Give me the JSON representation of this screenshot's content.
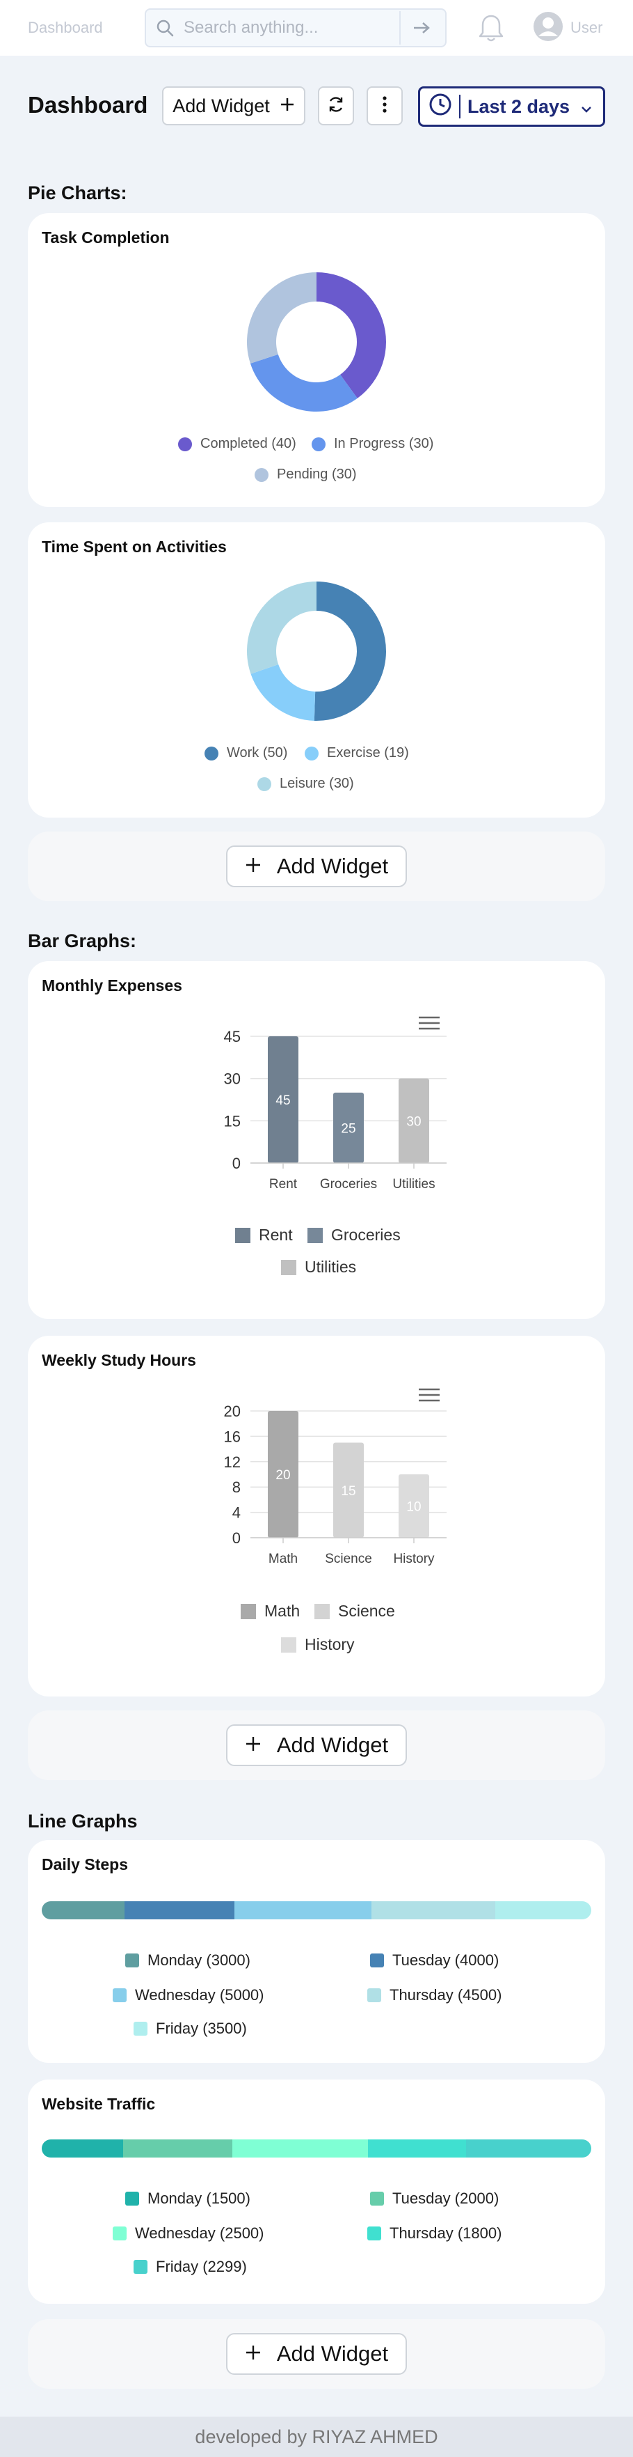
{
  "nav": {
    "title": "Dashboard",
    "search_placeholder": "Search anything...",
    "user_label": "User"
  },
  "header": {
    "title": "Dashboard",
    "add_widget_label": "Add Widget",
    "range_label": "Last 2 days"
  },
  "sections": {
    "pie": "Pie Charts:",
    "bar": "Bar Graphs:",
    "line": "Line Graphs"
  },
  "add_widget_label": "Add Widget",
  "footer": "developed by RIYAZ AHMED",
  "chart_data": [
    {
      "type": "pie",
      "title": "Task Completion",
      "categories": [
        "Completed",
        "In Progress",
        "Pending"
      ],
      "values": [
        40,
        30,
        30
      ],
      "colors": [
        "#6a5acd",
        "#6495ed",
        "#b0c4de"
      ],
      "legend": [
        "Completed (40)",
        "In Progress (30)",
        "Pending (30)"
      ]
    },
    {
      "type": "pie",
      "title": "Time Spent on Activities",
      "categories": [
        "Work",
        "Exercise",
        "Leisure"
      ],
      "values": [
        50,
        19,
        30
      ],
      "colors": [
        "#4682b4",
        "#87cefa",
        "#add8e6"
      ],
      "legend": [
        "Work (50)",
        "Exercise (19)",
        "Leisure (30)"
      ]
    },
    {
      "type": "bar",
      "title": "Monthly Expenses",
      "categories": [
        "Rent",
        "Groceries",
        "Utilities"
      ],
      "values": [
        45,
        25,
        30
      ],
      "colors": [
        "#708090",
        "#778899",
        "#c0c0c0"
      ],
      "yticks": [
        0,
        15,
        30,
        45
      ],
      "ylim": [
        0,
        45
      ],
      "legend": [
        "Rent",
        "Groceries",
        "Utilities"
      ]
    },
    {
      "type": "bar",
      "title": "Weekly Study Hours",
      "categories": [
        "Math",
        "Science",
        "History"
      ],
      "values": [
        20,
        15,
        10
      ],
      "colors": [
        "#a9a9a9",
        "#d3d3d3",
        "#dcdcdc"
      ],
      "yticks": [
        0,
        4,
        8,
        12,
        16,
        20
      ],
      "ylim": [
        0,
        20
      ],
      "legend": [
        "Math",
        "Science",
        "History"
      ]
    },
    {
      "type": "bar",
      "stacked": true,
      "title": "Daily Steps",
      "categories": [
        "Monday",
        "Tuesday",
        "Wednesday",
        "Thursday",
        "Friday"
      ],
      "values": [
        3000,
        4000,
        5000,
        4500,
        3500
      ],
      "colors": [
        "#5f9ea0",
        "#4682b4",
        "#87ceeb",
        "#b0e0e6",
        "#afeeee"
      ],
      "legend": [
        "Monday (3000)",
        "Tuesday (4000)",
        "Wednesday (5000)",
        "Thursday (4500)",
        "Friday (3500)"
      ]
    },
    {
      "type": "bar",
      "stacked": true,
      "title": "Website Traffic",
      "categories": [
        "Monday",
        "Tuesday",
        "Wednesday",
        "Thursday",
        "Friday"
      ],
      "values": [
        1500,
        2000,
        2500,
        1800,
        2299
      ],
      "colors": [
        "#20b2aa",
        "#66cdaa",
        "#7fffd4",
        "#40e0d0",
        "#48d1cc"
      ],
      "legend": [
        "Monday (1500)",
        "Tuesday (2000)",
        "Wednesday (2500)",
        "Thursday (1800)",
        "Friday (2299)"
      ]
    }
  ]
}
